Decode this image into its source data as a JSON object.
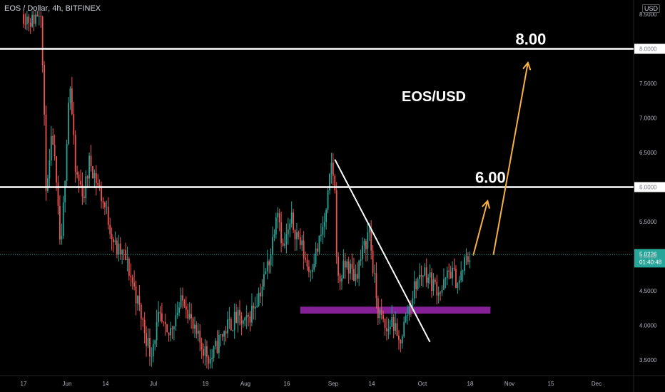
{
  "header": {
    "symbol": "EOS / Dollar",
    "interval": "4h",
    "exchange": "BITFINEX",
    "currency": "USD"
  },
  "colors": {
    "background": "#000000",
    "up": "#26a69a",
    "down": "#ef5350",
    "last_price": "#26a69a",
    "levels": "#ffffff",
    "arrows": "#f7b044",
    "support_zone": "#9c27b0",
    "trendline": "#ffffff"
  },
  "chart_data": {
    "type": "candlestick",
    "title": "EOS/USD",
    "x_tick_labels": [
      "17",
      "Jun",
      "14",
      "Jul",
      "19",
      "Aug",
      "16",
      "Sep",
      "14",
      "Oct",
      "18",
      "Nov",
      "15",
      "Dec"
    ],
    "y_tick_labels": [
      "3.5000",
      "4.0000",
      "4.5000",
      "5.0000",
      "5.5000",
      "6.0000",
      "6.5000",
      "7.0000",
      "7.5000",
      "8.0000",
      "8.5000"
    ],
    "y_ticks": [
      3.5,
      4.0,
      4.5,
      5.0,
      5.5,
      6.0,
      6.5,
      7.0,
      7.5,
      8.0,
      8.5
    ],
    "ylim": [
      3.35,
      8.55
    ],
    "xlim_days": [
      0,
      210
    ],
    "last_price": "5.0226",
    "countdown": "01:40:48",
    "horizontal_levels": [
      {
        "value": 8.0,
        "label": "8.00",
        "axis_label": "8.0000"
      },
      {
        "value": 6.0,
        "label": "6.00",
        "axis_label": "6.0000"
      }
    ],
    "support_zone": {
      "low": 4.17,
      "high": 4.27,
      "from_day": 96,
      "to_day": 162
    },
    "trendline": {
      "start": {
        "day": 108,
        "value": 6.4
      },
      "end": {
        "day": 141,
        "value": 3.76
      }
    },
    "arrows": [
      {
        "from": {
          "day": 156,
          "value": 5.01
        },
        "to": {
          "day": 161,
          "value": 5.8
        },
        "target_label": "6.00"
      },
      {
        "from": {
          "day": 163,
          "value": 5.02
        },
        "to": {
          "day": 175,
          "value": 7.8
        },
        "target_label": "8.00"
      }
    ],
    "price_path": [
      {
        "day": 0,
        "value": 8.5
      },
      {
        "day": 3,
        "value": 8.4
      },
      {
        "day": 6,
        "value": 8.6
      },
      {
        "day": 8,
        "value": 5.8
      },
      {
        "day": 10,
        "value": 6.8
      },
      {
        "day": 13,
        "value": 5.0
      },
      {
        "day": 16,
        "value": 7.6
      },
      {
        "day": 18,
        "value": 6.2
      },
      {
        "day": 21,
        "value": 5.9
      },
      {
        "day": 23,
        "value": 6.4
      },
      {
        "day": 26,
        "value": 6.0
      },
      {
        "day": 29,
        "value": 5.6
      },
      {
        "day": 32,
        "value": 5.1
      },
      {
        "day": 35,
        "value": 5.0
      },
      {
        "day": 38,
        "value": 4.6
      },
      {
        "day": 41,
        "value": 4.1
      },
      {
        "day": 44,
        "value": 3.6
      },
      {
        "day": 47,
        "value": 4.1
      },
      {
        "day": 50,
        "value": 3.8
      },
      {
        "day": 53,
        "value": 4.2
      },
      {
        "day": 56,
        "value": 4.4
      },
      {
        "day": 59,
        "value": 3.9
      },
      {
        "day": 62,
        "value": 3.7
      },
      {
        "day": 65,
        "value": 3.5
      },
      {
        "day": 68,
        "value": 3.8
      },
      {
        "day": 71,
        "value": 4.0
      },
      {
        "day": 74,
        "value": 4.1
      },
      {
        "day": 77,
        "value": 4.0
      },
      {
        "day": 80,
        "value": 4.3
      },
      {
        "day": 83,
        "value": 4.6
      },
      {
        "day": 86,
        "value": 5.1
      },
      {
        "day": 88,
        "value": 5.8
      },
      {
        "day": 90,
        "value": 5.1
      },
      {
        "day": 93,
        "value": 5.5
      },
      {
        "day": 96,
        "value": 5.2
      },
      {
        "day": 99,
        "value": 4.8
      },
      {
        "day": 102,
        "value": 5.1
      },
      {
        "day": 105,
        "value": 5.6
      },
      {
        "day": 107,
        "value": 6.4
      },
      {
        "day": 108,
        "value": 5.9
      },
      {
        "day": 109,
        "value": 4.6
      },
      {
        "day": 112,
        "value": 4.9
      },
      {
        "day": 115,
        "value": 4.7
      },
      {
        "day": 118,
        "value": 5.1
      },
      {
        "day": 120,
        "value": 5.4
      },
      {
        "day": 121,
        "value": 4.9
      },
      {
        "day": 123,
        "value": 4.2
      },
      {
        "day": 126,
        "value": 3.9
      },
      {
        "day": 128,
        "value": 4.1
      },
      {
        "day": 130,
        "value": 3.7
      },
      {
        "day": 132,
        "value": 4.0
      },
      {
        "day": 134,
        "value": 4.3
      },
      {
        "day": 136,
        "value": 4.6
      },
      {
        "day": 139,
        "value": 4.8
      },
      {
        "day": 142,
        "value": 4.6
      },
      {
        "day": 145,
        "value": 4.5
      },
      {
        "day": 148,
        "value": 4.8
      },
      {
        "day": 151,
        "value": 4.6
      },
      {
        "day": 153,
        "value": 4.9
      },
      {
        "day": 155,
        "value": 5.02
      }
    ]
  }
}
